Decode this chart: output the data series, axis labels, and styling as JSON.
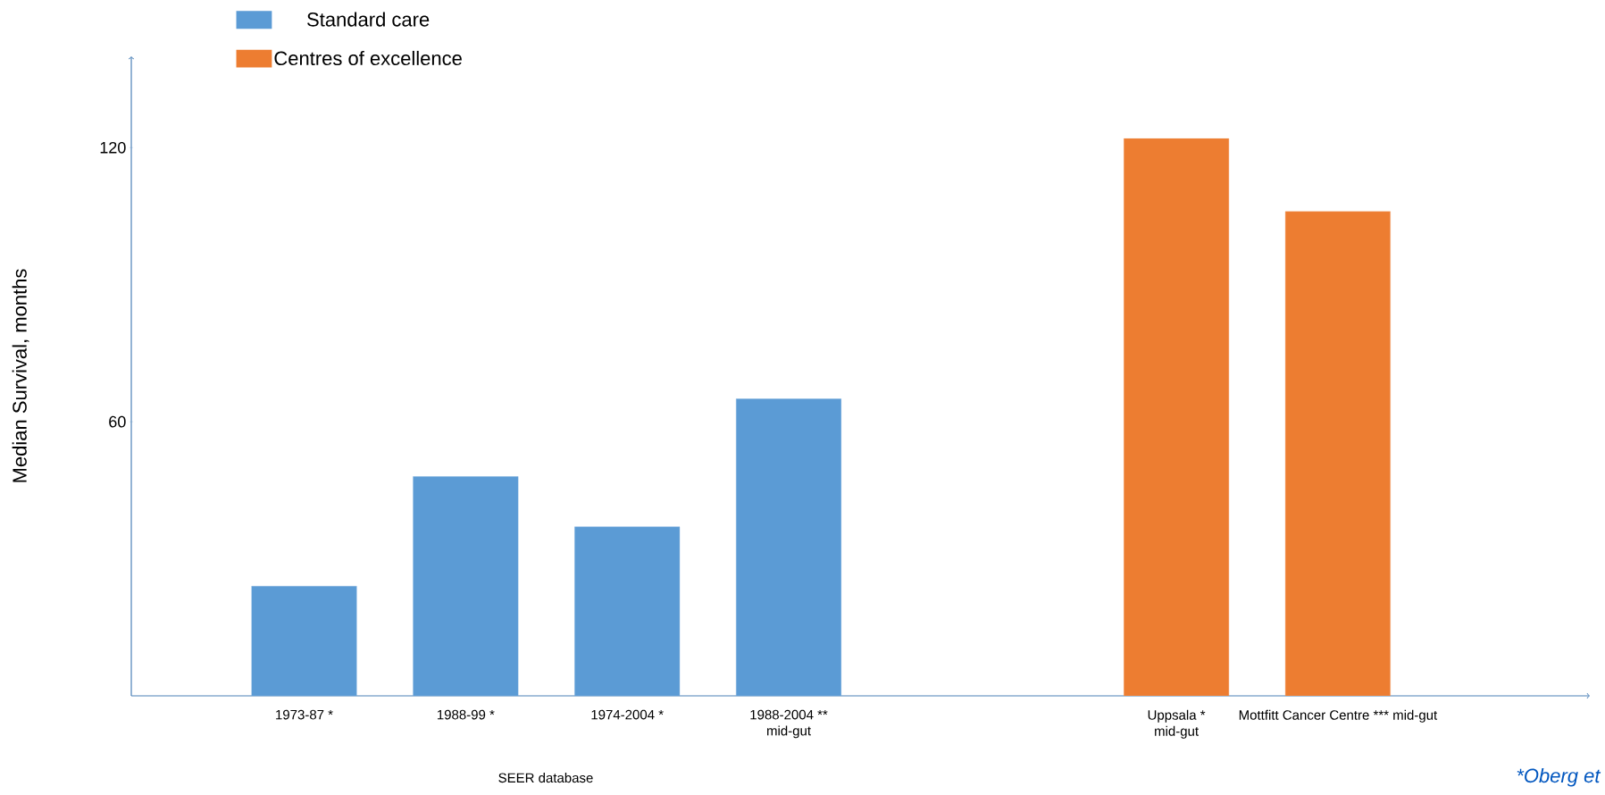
{
  "chart_data": {
    "type": "bar",
    "ylabel": "Median Survival, months",
    "categories": [
      "1973-87 *",
      "1988-99 *",
      "1974-2004 *",
      "1988-2004 ** mid-gut",
      "Uppsala * mid-gut",
      "Mottfitt Cancer Centre *** mid-gut"
    ],
    "series": [
      {
        "name": "Standard care",
        "color": "#5b9bd5",
        "values": [
          24,
          48,
          37,
          65,
          null,
          null
        ]
      },
      {
        "name": "Centres of excellence",
        "color": "#ed7d31",
        "values": [
          null,
          null,
          null,
          null,
          122,
          106
        ]
      }
    ],
    "ylim": [
      0,
      140
    ],
    "yticks": [
      60,
      120
    ],
    "legend": "top left",
    "annotations": [
      "SEER database",
      "*Oberg et"
    ]
  }
}
